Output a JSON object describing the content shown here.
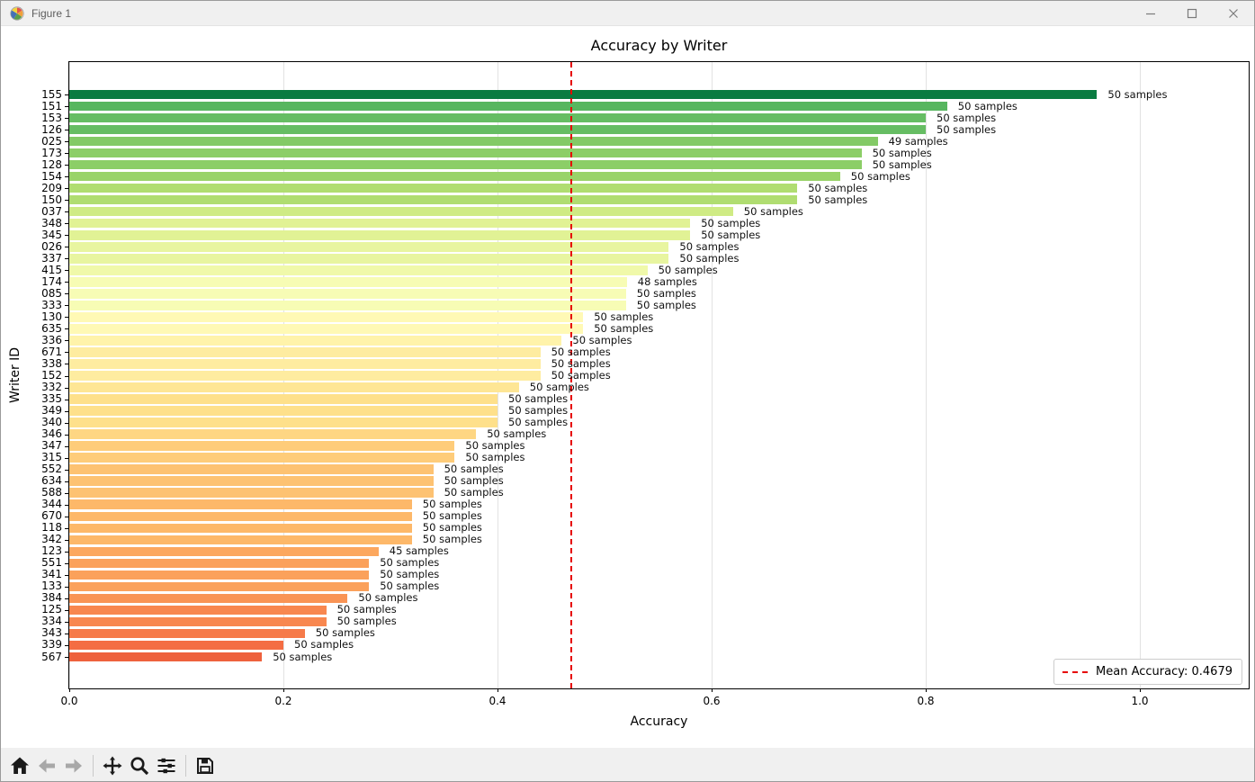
{
  "window": {
    "title": "Figure 1",
    "controls": [
      {
        "name": "minimize"
      },
      {
        "name": "maximize"
      },
      {
        "name": "close"
      }
    ]
  },
  "chart_data": {
    "type": "bar",
    "orientation": "horizontal",
    "title": "Accuracy by Writer",
    "xlabel": "Accuracy",
    "ylabel": "Writer ID",
    "xlim": [
      0.0,
      1.1
    ],
    "xticks": [
      "0.0",
      "0.2",
      "0.4",
      "0.6",
      "0.8",
      "1.0"
    ],
    "grid": "x-axis, light gray",
    "colormap": "RdYlGn",
    "mean_line": {
      "value": 0.4679,
      "color": "#e60000",
      "style": "dashed",
      "label": "Mean Accuracy: 0.4679"
    },
    "legend_position": "lower right",
    "bars": [
      {
        "writer_id": "155",
        "accuracy": 0.96,
        "samples_label": "50 samples",
        "color": "#0a7b41"
      },
      {
        "writer_id": "151",
        "accuracy": 0.82,
        "samples_label": "50 samples",
        "color": "#57b65f"
      },
      {
        "writer_id": "153",
        "accuracy": 0.8,
        "samples_label": "50 samples",
        "color": "#66bd63"
      },
      {
        "writer_id": "126",
        "accuracy": 0.8,
        "samples_label": "50 samples",
        "color": "#66bd63"
      },
      {
        "writer_id": "025",
        "accuracy": 0.7551,
        "samples_label": "49 samples",
        "color": "#83ca66"
      },
      {
        "writer_id": "173",
        "accuracy": 0.74,
        "samples_label": "50 samples",
        "color": "#8cce67"
      },
      {
        "writer_id": "128",
        "accuracy": 0.74,
        "samples_label": "50 samples",
        "color": "#8cce67"
      },
      {
        "writer_id": "154",
        "accuracy": 0.72,
        "samples_label": "50 samples",
        "color": "#99d369"
      },
      {
        "writer_id": "209",
        "accuracy": 0.68,
        "samples_label": "50 samples",
        "color": "#b0dd71"
      },
      {
        "writer_id": "150",
        "accuracy": 0.68,
        "samples_label": "50 samples",
        "color": "#b0dd71"
      },
      {
        "writer_id": "037",
        "accuracy": 0.62,
        "samples_label": "50 samples",
        "color": "#cfeb84"
      },
      {
        "writer_id": "348",
        "accuracy": 0.58,
        "samples_label": "50 samples",
        "color": "#e1f295"
      },
      {
        "writer_id": "345",
        "accuracy": 0.58,
        "samples_label": "50 samples",
        "color": "#e1f295"
      },
      {
        "writer_id": "026",
        "accuracy": 0.56,
        "samples_label": "50 samples",
        "color": "#e8f5a0"
      },
      {
        "writer_id": "337",
        "accuracy": 0.56,
        "samples_label": "50 samples",
        "color": "#e8f5a0"
      },
      {
        "writer_id": "415",
        "accuracy": 0.54,
        "samples_label": "50 samples",
        "color": "#f0f9aa"
      },
      {
        "writer_id": "174",
        "accuracy": 0.5208,
        "samples_label": "48 samples",
        "color": "#f7fcb4"
      },
      {
        "writer_id": "085",
        "accuracy": 0.52,
        "samples_label": "50 samples",
        "color": "#f7fcb5"
      },
      {
        "writer_id": "333",
        "accuracy": 0.52,
        "samples_label": "50 samples",
        "color": "#f7fcb5"
      },
      {
        "writer_id": "130",
        "accuracy": 0.48,
        "samples_label": "50 samples",
        "color": "#fff9b5"
      },
      {
        "writer_id": "635",
        "accuracy": 0.48,
        "samples_label": "50 samples",
        "color": "#fff9b5"
      },
      {
        "writer_id": "336",
        "accuracy": 0.46,
        "samples_label": "50 samples",
        "color": "#fff3aa"
      },
      {
        "writer_id": "671",
        "accuracy": 0.44,
        "samples_label": "50 samples",
        "color": "#feeca0"
      },
      {
        "writer_id": "338",
        "accuracy": 0.44,
        "samples_label": "50 samples",
        "color": "#feeca0"
      },
      {
        "writer_id": "152",
        "accuracy": 0.44,
        "samples_label": "50 samples",
        "color": "#feeca0"
      },
      {
        "writer_id": "332",
        "accuracy": 0.42,
        "samples_label": "50 samples",
        "color": "#fee695"
      },
      {
        "writer_id": "335",
        "accuracy": 0.4,
        "samples_label": "50 samples",
        "color": "#fee08b"
      },
      {
        "writer_id": "349",
        "accuracy": 0.4,
        "samples_label": "50 samples",
        "color": "#fee08b"
      },
      {
        "writer_id": "340",
        "accuracy": 0.4,
        "samples_label": "50 samples",
        "color": "#fee08b"
      },
      {
        "writer_id": "346",
        "accuracy": 0.38,
        "samples_label": "50 samples",
        "color": "#fed683"
      },
      {
        "writer_id": "347",
        "accuracy": 0.36,
        "samples_label": "50 samples",
        "color": "#fecc7a"
      },
      {
        "writer_id": "315",
        "accuracy": 0.36,
        "samples_label": "50 samples",
        "color": "#fecc7a"
      },
      {
        "writer_id": "552",
        "accuracy": 0.34,
        "samples_label": "50 samples",
        "color": "#fdc272"
      },
      {
        "writer_id": "634",
        "accuracy": 0.34,
        "samples_label": "50 samples",
        "color": "#fdc272"
      },
      {
        "writer_id": "588",
        "accuracy": 0.34,
        "samples_label": "50 samples",
        "color": "#fdc272"
      },
      {
        "writer_id": "344",
        "accuracy": 0.32,
        "samples_label": "50 samples",
        "color": "#fdb869"
      },
      {
        "writer_id": "670",
        "accuracy": 0.32,
        "samples_label": "50 samples",
        "color": "#fdb869"
      },
      {
        "writer_id": "118",
        "accuracy": 0.32,
        "samples_label": "50 samples",
        "color": "#fdb869"
      },
      {
        "writer_id": "342",
        "accuracy": 0.32,
        "samples_label": "50 samples",
        "color": "#fdb869"
      },
      {
        "writer_id": "123",
        "accuracy": 0.2889,
        "samples_label": "45 samples",
        "color": "#fca75e"
      },
      {
        "writer_id": "551",
        "accuracy": 0.28,
        "samples_label": "50 samples",
        "color": "#fba15b"
      },
      {
        "writer_id": "341",
        "accuracy": 0.28,
        "samples_label": "50 samples",
        "color": "#fba15b"
      },
      {
        "writer_id": "133",
        "accuracy": 0.28,
        "samples_label": "50 samples",
        "color": "#fba15b"
      },
      {
        "writer_id": "384",
        "accuracy": 0.26,
        "samples_label": "50 samples",
        "color": "#f99455"
      },
      {
        "writer_id": "125",
        "accuracy": 0.24,
        "samples_label": "50 samples",
        "color": "#f8874f"
      },
      {
        "writer_id": "334",
        "accuracy": 0.24,
        "samples_label": "50 samples",
        "color": "#f8874f"
      },
      {
        "writer_id": "343",
        "accuracy": 0.22,
        "samples_label": "50 samples",
        "color": "#f67a49"
      },
      {
        "writer_id": "339",
        "accuracy": 0.2,
        "samples_label": "50 samples",
        "color": "#f46d43"
      },
      {
        "writer_id": "567",
        "accuracy": 0.18,
        "samples_label": "50 samples",
        "color": "#ee613d"
      }
    ]
  },
  "toolbar": {
    "buttons": [
      {
        "name": "home-button",
        "icon": "home",
        "enabled": true
      },
      {
        "name": "back-button",
        "icon": "back",
        "enabled": false
      },
      {
        "name": "forward-button",
        "icon": "forward",
        "enabled": false
      },
      {
        "name": "separator"
      },
      {
        "name": "pan-button",
        "icon": "pan",
        "enabled": true
      },
      {
        "name": "zoom-button",
        "icon": "zoom",
        "enabled": true
      },
      {
        "name": "subplots-button",
        "icon": "sliders",
        "enabled": true
      },
      {
        "name": "separator"
      },
      {
        "name": "save-button",
        "icon": "save",
        "enabled": true
      }
    ]
  }
}
